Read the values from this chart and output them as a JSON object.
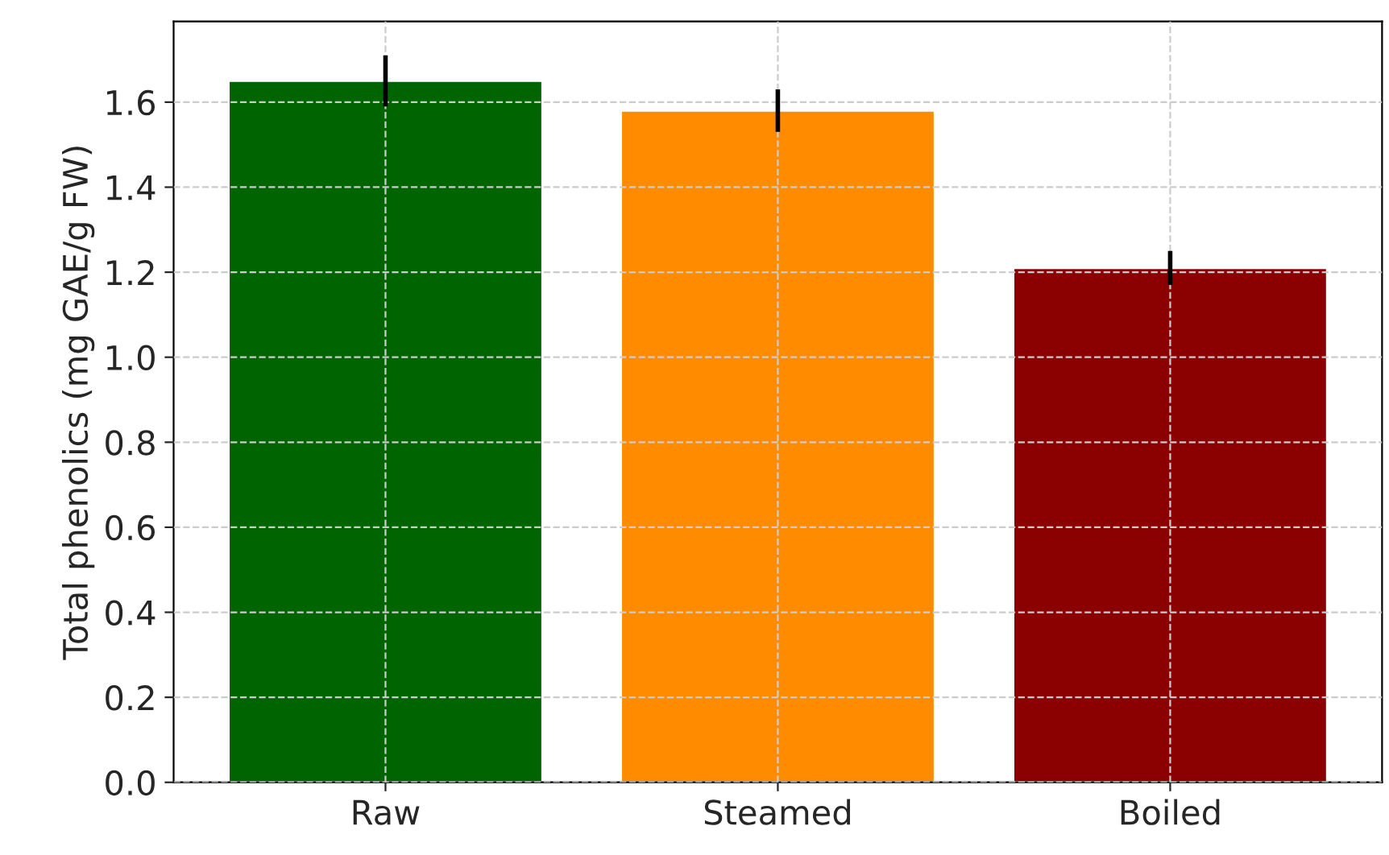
{
  "chart_data": {
    "type": "bar",
    "ylabel": "Total phenolics (mg GAE/g FW)",
    "categories": [
      "Raw",
      "Steamed",
      "Boiled"
    ],
    "values": [
      1.65,
      1.58,
      1.21
    ],
    "errors": [
      0.06,
      0.05,
      0.04
    ],
    "colors": [
      "#006400",
      "#ff8c00",
      "#8b0000"
    ],
    "ylim": [
      0,
      1.79
    ],
    "yticks": [
      {
        "value": 0,
        "label": "0.0"
      },
      0.2,
      0.4,
      0.6,
      0.8,
      {
        "value": 1,
        "label": "1.0"
      },
      1.2,
      1.4,
      1.6
    ],
    "grid": true
  }
}
